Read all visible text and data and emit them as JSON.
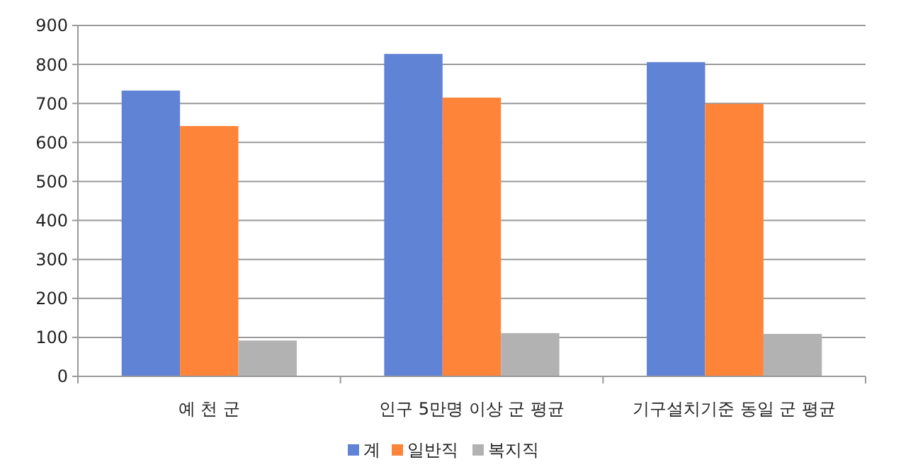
{
  "chart_data": {
    "type": "bar",
    "categories": [
      "예 천 군",
      "인구 5만명 이상 군 평균",
      "기구설치기준 동일 군 평균"
    ],
    "series": [
      {
        "name": "계",
        "color": "#6083d6",
        "values": [
          733,
          827,
          806
        ]
      },
      {
        "name": "일반직",
        "color": "#fe8439",
        "values": [
          642,
          715,
          699
        ]
      },
      {
        "name": "복지직",
        "color": "#b2b2b2",
        "values": [
          92,
          111,
          109
        ]
      }
    ],
    "ylim": [
      0,
      900
    ],
    "yticks": [
      0,
      100,
      200,
      300,
      400,
      500,
      600,
      700,
      800,
      900
    ],
    "grid": "y",
    "legend": "bottom"
  }
}
